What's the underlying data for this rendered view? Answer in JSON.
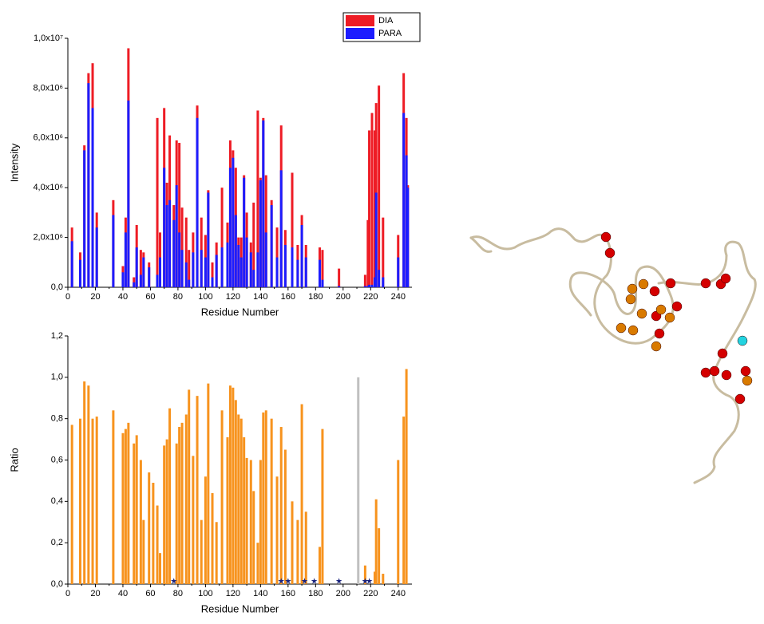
{
  "chart_data": [
    {
      "type": "bar",
      "x_label": "Residue Number",
      "y_label": "Intensity",
      "xlim": [
        0,
        250
      ],
      "xticks": [
        0,
        20,
        40,
        60,
        80,
        100,
        120,
        140,
        160,
        180,
        200,
        220,
        240
      ],
      "ylim": [
        0,
        10000000
      ],
      "yticks": [
        {
          "value": 0,
          "label": "0,0"
        },
        {
          "value": 2000000,
          "label": "2,0x10⁶"
        },
        {
          "value": 4000000,
          "label": "4,0x10⁶"
        },
        {
          "value": 6000000,
          "label": "6,0x10⁶"
        },
        {
          "value": 8000000,
          "label": "8,0x10⁶"
        },
        {
          "value": 10000000,
          "label": "1,0x10⁷"
        }
      ],
      "x": [
        3,
        9,
        12,
        15,
        18,
        21,
        33,
        40,
        42,
        44,
        48,
        50,
        53,
        55,
        59,
        65,
        67,
        70,
        72,
        74,
        77,
        79,
        81,
        83,
        86,
        88,
        91,
        94,
        97,
        100,
        102,
        105,
        108,
        112,
        116,
        118,
        120,
        122,
        124,
        126,
        128,
        130,
        133,
        135,
        138,
        140,
        142,
        144,
        148,
        152,
        155,
        158,
        163,
        167,
        170,
        173,
        183,
        185,
        197,
        216,
        218,
        219,
        221,
        223,
        224,
        226,
        229,
        240,
        244,
        246,
        247
      ],
      "series": [
        {
          "name": "DIA",
          "color": "#ee1c25",
          "values": [
            2400000,
            1400000,
            5700000,
            8600000,
            9000000,
            3000000,
            3500000,
            850000,
            2800000,
            9600000,
            400000,
            2500000,
            1500000,
            1400000,
            1000000,
            6800000,
            2200000,
            7200000,
            4200000,
            6100000,
            3300000,
            5900000,
            5800000,
            3200000,
            2800000,
            1500000,
            2200000,
            7300000,
            2800000,
            2100000,
            3900000,
            1000000,
            1800000,
            4000000,
            2600000,
            5900000,
            5500000,
            4800000,
            2000000,
            2000000,
            4500000,
            3000000,
            1800000,
            3400000,
            7100000,
            4400000,
            6800000,
            4500000,
            3500000,
            2400000,
            6500000,
            2300000,
            4600000,
            1700000,
            2900000,
            1700000,
            1600000,
            1500000,
            750000,
            500000,
            2700000,
            6300000,
            7000000,
            6300000,
            7400000,
            8100000,
            2800000,
            2100000,
            8600000,
            6800000,
            4100000
          ]
        },
        {
          "name": "PARA",
          "color": "#1c1cff",
          "values": [
            1850000,
            1100000,
            5500000,
            8200000,
            7200000,
            2400000,
            2900000,
            600000,
            2200000,
            7500000,
            200000,
            1600000,
            500000,
            1200000,
            800000,
            500000,
            1200000,
            4800000,
            3300000,
            3500000,
            2700000,
            4100000,
            2200000,
            1500000,
            1000000,
            300000,
            1400000,
            6800000,
            1500000,
            1200000,
            3800000,
            400000,
            1300000,
            1600000,
            1800000,
            4800000,
            5200000,
            2900000,
            1700000,
            1200000,
            4400000,
            2000000,
            1400000,
            700000,
            1400000,
            4300000,
            6700000,
            2200000,
            3300000,
            1200000,
            4700000,
            1700000,
            1600000,
            1100000,
            2500000,
            1200000,
            1100000,
            300000,
            50000,
            50000,
            50000,
            100000,
            100000,
            400000,
            3800000,
            700000,
            400000,
            1200000,
            7000000,
            5300000,
            4000000
          ]
        }
      ],
      "legend": "top-right"
    },
    {
      "type": "bar",
      "x_label": "Residue Number",
      "y_label": "Ratio",
      "xlim": [
        0,
        250
      ],
      "xticks": [
        0,
        20,
        40,
        60,
        80,
        100,
        120,
        140,
        160,
        180,
        200,
        220,
        240
      ],
      "ylim": [
        0,
        1.2
      ],
      "yticks": [
        {
          "value": 0,
          "label": "0,0"
        },
        {
          "value": 0.2,
          "label": "0,2"
        },
        {
          "value": 0.4,
          "label": "0,4"
        },
        {
          "value": 0.6,
          "label": "0,6"
        },
        {
          "value": 0.8,
          "label": "0,8"
        },
        {
          "value": 1.0,
          "label": "1,0"
        },
        {
          "value": 1.2,
          "label": "1,2"
        }
      ],
      "series": [
        {
          "color": "#f7931e",
          "x": [
            3,
            9,
            12,
            15,
            18,
            21,
            33,
            40,
            42,
            44,
            48,
            50,
            53,
            55,
            59,
            62,
            65,
            67,
            70,
            72,
            74,
            79,
            81,
            83,
            86,
            88,
            91,
            94,
            97,
            100,
            102,
            105,
            108,
            112,
            116,
            118,
            120,
            122,
            124,
            126,
            128,
            130,
            133,
            135,
            138,
            140,
            142,
            144,
            148,
            152,
            155,
            158,
            163,
            167,
            170,
            173,
            183,
            185,
            216,
            223,
            224,
            226,
            229,
            240,
            244,
            246
          ],
          "values": [
            0.77,
            0.8,
            0.98,
            0.96,
            0.8,
            0.81,
            0.84,
            0.73,
            0.75,
            0.78,
            0.68,
            0.72,
            0.6,
            0.31,
            0.54,
            0.49,
            0.38,
            0.15,
            0.67,
            0.7,
            0.85,
            0.68,
            0.76,
            0.78,
            0.82,
            0.94,
            0.62,
            0.91,
            0.31,
            0.52,
            0.97,
            0.44,
            0.3,
            0.84,
            0.71,
            0.96,
            0.95,
            0.89,
            0.82,
            0.8,
            0.71,
            0.61,
            0.6,
            0.45,
            0.2,
            0.6,
            0.83,
            0.84,
            0.8,
            0.52,
            0.76,
            0.65,
            0.4,
            0.31,
            0.87,
            0.35,
            0.18,
            0.75,
            0.09,
            0.06,
            0.41,
            0.27,
            0.05,
            0.6,
            0.81,
            1.04
          ]
        },
        {
          "color": "#c0c0c0",
          "x": [
            211
          ],
          "values": [
            1.0
          ]
        }
      ],
      "stars": {
        "color": "#1a237e",
        "x": [
          77,
          155,
          160,
          172,
          179,
          197,
          216,
          219
        ]
      }
    }
  ]
}
